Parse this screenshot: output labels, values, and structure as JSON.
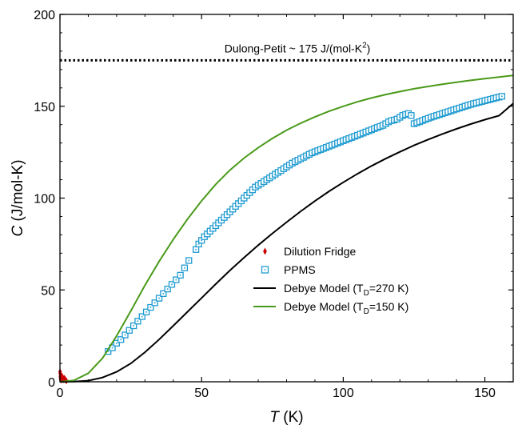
{
  "chart_data": {
    "type": "line",
    "title": "",
    "xlabel": {
      "symbol": "T",
      "unit": " (K)"
    },
    "ylabel": {
      "symbol": "C",
      "unit": " (J/mol-K)"
    },
    "xlim": [
      0,
      160
    ],
    "ylim": [
      0,
      200
    ],
    "xticks": [
      0,
      50,
      100,
      150
    ],
    "yticks": [
      0,
      50,
      100,
      150,
      200
    ],
    "grid": false,
    "legend_position": "center-right",
    "annotation": {
      "text": "Dulong-Petit ~ 175 J/(mol-K",
      "superscript": "2",
      "suffix": ")",
      "y": 175,
      "style": "dotted",
      "color": "#000000"
    },
    "series": [
      {
        "name": "Dilution Fridge",
        "kind": "scatter",
        "marker": "diamond",
        "color": "#cc0000",
        "x": [
          0.05,
          0.1,
          0.15,
          0.2,
          0.3,
          0.4,
          0.5,
          0.6,
          0.8,
          1.0,
          1.2,
          1.5,
          1.8,
          2.0,
          2.3
        ],
        "y": [
          5.5,
          4.5,
          3.0,
          2.0,
          1.2,
          0.8,
          1.0,
          1.5,
          3.0,
          2.0,
          1.0,
          2.0,
          1.5,
          0.8,
          0.5
        ]
      },
      {
        "name": "PPMS",
        "kind": "scatter",
        "marker": "square",
        "color": "#1f9bd1",
        "x": [
          17,
          18.5,
          20,
          21.5,
          23,
          24.5,
          26,
          27.5,
          29,
          30.5,
          32,
          33.5,
          35,
          36.5,
          38,
          39.5,
          41,
          42.5,
          44,
          45.5,
          48,
          49,
          50,
          51,
          52,
          53,
          54,
          55,
          56,
          57,
          58,
          59,
          60,
          61,
          62,
          63,
          64,
          65,
          66,
          67,
          68,
          69,
          70,
          71,
          72,
          73,
          74,
          75,
          76,
          77,
          78,
          79,
          80,
          81,
          82,
          83,
          84,
          85,
          86,
          87,
          88,
          89,
          90,
          91,
          92,
          93,
          94,
          95,
          96,
          97,
          98,
          99,
          100,
          101,
          102,
          103,
          104,
          105,
          106,
          107,
          108,
          109,
          110,
          111,
          112,
          113,
          114,
          115,
          116,
          117,
          118,
          119,
          120,
          121,
          122,
          123,
          124,
          125,
          126,
          127,
          128,
          129,
          130,
          131,
          132,
          133,
          134,
          135,
          136,
          137,
          138,
          139,
          140,
          141,
          142,
          143,
          144,
          145,
          146,
          147,
          148,
          149,
          150,
          151,
          152,
          153,
          154,
          155,
          156
        ],
        "y": [
          16.5,
          18.5,
          21,
          23,
          25.5,
          28,
          30.5,
          33,
          35.5,
          38,
          40.5,
          43,
          45.5,
          48,
          50.5,
          53,
          55.5,
          58,
          62,
          66,
          72,
          75,
          77,
          79,
          80.5,
          82,
          83.5,
          85,
          86.5,
          88,
          89.5,
          91,
          92.5,
          94,
          95.5,
          97,
          98.5,
          100,
          101.5,
          103,
          104.5,
          106,
          107,
          108,
          109,
          110,
          111,
          112,
          113,
          114,
          115,
          116,
          117,
          118,
          119,
          119.8,
          120.6,
          121.4,
          122.2,
          123,
          123.8,
          124.6,
          125.2,
          125.8,
          126.4,
          127,
          127.6,
          128.2,
          128.8,
          129.4,
          130,
          130.6,
          131.2,
          131.8,
          132.4,
          133,
          133.6,
          134.2,
          134.8,
          135.4,
          136,
          136.6,
          137.2,
          137.8,
          138.4,
          139,
          139.6,
          140.5,
          141.5,
          142.2,
          142.5,
          143,
          144,
          145,
          145.5,
          146,
          145,
          140.5,
          141,
          141.6,
          142.2,
          142.8,
          143.4,
          144,
          144.5,
          145,
          145.5,
          146,
          146.5,
          147,
          147.5,
          148,
          148.5,
          149,
          149.5,
          150,
          150.5,
          151,
          151.4,
          151.8,
          152.2,
          152.6,
          153,
          153.4,
          153.8,
          154.2,
          154.6,
          155,
          155.4
        ]
      },
      {
        "name": "Debye Model (T",
        "name_subscript": "D",
        "name_suffix": "=270 K)",
        "kind": "line",
        "theta_D": 270,
        "color": "#000000",
        "x": [
          0,
          5,
          10,
          15,
          20,
          25,
          30,
          35,
          40,
          45,
          50,
          55,
          60,
          65,
          70,
          75,
          80,
          85,
          90,
          95,
          100,
          105,
          110,
          115,
          120,
          125,
          130,
          135,
          140,
          145,
          150,
          155,
          160
        ],
        "y": [
          0,
          0.1,
          0.6,
          2.3,
          5.4,
          10.0,
          16.1,
          23.0,
          30.5,
          38.1,
          45.6,
          53.2,
          60.6,
          67.6,
          74.4,
          80.8,
          86.9,
          92.8,
          98.4,
          103.7,
          108.6,
          113.2,
          117.5,
          121.5,
          125.2,
          128.7,
          131.9,
          134.9,
          137.7,
          140.3,
          142.7,
          144.9,
          151.5
        ]
      },
      {
        "name": "Debye Model (T",
        "name_subscript": "D",
        "name_suffix": "=150 K)",
        "kind": "line",
        "theta_D": 150,
        "color": "#4a9a1a",
        "x": [
          0,
          5,
          10,
          15,
          20,
          25,
          30,
          35,
          40,
          45,
          50,
          55,
          60,
          65,
          70,
          75,
          80,
          85,
          90,
          95,
          100,
          105,
          110,
          115,
          120,
          125,
          130,
          135,
          140,
          145,
          150,
          155,
          160
        ],
        "y": [
          0,
          0.8,
          4.6,
          12.8,
          25.0,
          38.5,
          52.5,
          65.5,
          77.5,
          88.5,
          98.5,
          107.5,
          115.2,
          121.8,
          127.5,
          132.5,
          137.0,
          140.8,
          144.2,
          147.3,
          150.0,
          152.4,
          154.5,
          156.4,
          158.0,
          159.5,
          160.8,
          162.0,
          163.1,
          164.1,
          165.0,
          165.9,
          166.8
        ]
      }
    ]
  }
}
